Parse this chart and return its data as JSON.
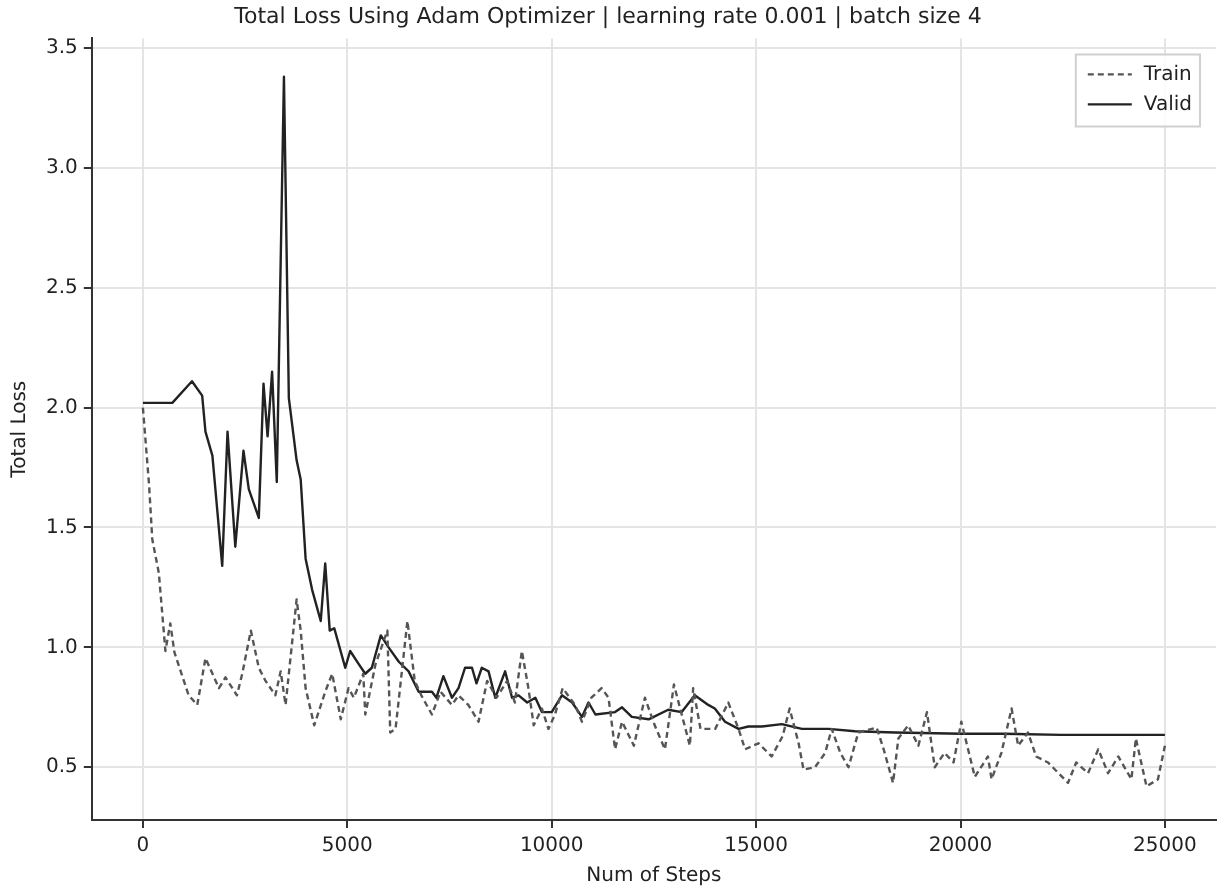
{
  "chart_data": {
    "type": "line",
    "title": "Total Loss Using Adam Optimizer | learning rate 0.001 | batch size 4",
    "xlabel": "Num of Steps",
    "ylabel": "Total Loss",
    "xlim": [
      -1250,
      26250
    ],
    "xticks": [
      0,
      5000,
      10000,
      15000,
      20000,
      25000
    ],
    "ylim": [
      0.28,
      3.54
    ],
    "yticks": [
      0.5,
      {
        "value": 1,
        "label": "1.0"
      },
      1.5,
      {
        "value": 2,
        "label": "2.0"
      },
      2.5,
      {
        "value": 3,
        "label": "3.0"
      },
      3.5
    ],
    "grid": true,
    "legend": "top right",
    "marker": "none",
    "series": [
      {
        "name": "Train",
        "color": "#555555",
        "line_style": "dashed",
        "x": [
          0,
          150,
          230,
          390,
          550,
          670,
          770,
          1120,
          1330,
          1530,
          1860,
          2020,
          2300,
          2430,
          2640,
          2835,
          3000,
          3240,
          3370,
          3490,
          3760,
          3860,
          3980,
          4190,
          4460,
          4630,
          4840,
          5030,
          5160,
          5390,
          5440,
          5690,
          5980,
          6050,
          6180,
          6470,
          6650,
          6810,
          7070,
          7280,
          7560,
          7720,
          7960,
          8210,
          8420,
          8650,
          8910,
          9100,
          9270,
          9430,
          9560,
          9760,
          9920,
          10080,
          10270,
          10570,
          10740,
          10970,
          11220,
          11390,
          11550,
          11720,
          12010,
          12280,
          12520,
          12770,
          12990,
          13180,
          13380,
          13460,
          13640,
          14000,
          14320,
          14570,
          14730,
          15060,
          15380,
          15650,
          15820,
          16040,
          16160,
          16440,
          16690,
          16850,
          17060,
          17260,
          17500,
          17950,
          18120,
          18350,
          18480,
          18720,
          18970,
          19180,
          19370,
          19610,
          19830,
          20020,
          20350,
          20670,
          20760,
          21000,
          21250,
          21410,
          21650,
          21850,
          22140,
          22630,
          22830,
          23120,
          23370,
          23610,
          23860,
          24180,
          24290,
          24550,
          24830,
          25000
        ],
        "values": [
          2.0,
          1.68,
          1.45,
          1.31,
          0.985,
          1.1,
          0.98,
          0.8,
          0.76,
          0.955,
          0.83,
          0.875,
          0.8,
          0.89,
          1.07,
          0.915,
          0.86,
          0.8,
          0.9,
          0.76,
          1.2,
          1.07,
          0.83,
          0.675,
          0.815,
          0.89,
          0.7,
          0.83,
          0.79,
          0.89,
          0.72,
          0.93,
          1.07,
          0.645,
          0.66,
          1.11,
          0.86,
          0.8,
          0.72,
          0.815,
          0.76,
          0.8,
          0.76,
          0.69,
          0.86,
          0.79,
          0.86,
          0.77,
          0.985,
          0.83,
          0.675,
          0.745,
          0.66,
          0.72,
          0.83,
          0.76,
          0.69,
          0.79,
          0.83,
          0.79,
          0.575,
          0.69,
          0.59,
          0.79,
          0.675,
          0.575,
          0.845,
          0.72,
          0.59,
          0.83,
          0.66,
          0.66,
          0.77,
          0.66,
          0.575,
          0.6,
          0.545,
          0.63,
          0.745,
          0.6,
          0.49,
          0.5,
          0.56,
          0.66,
          0.56,
          0.5,
          0.645,
          0.665,
          0.575,
          0.435,
          0.62,
          0.675,
          0.59,
          0.73,
          0.5,
          0.56,
          0.52,
          0.69,
          0.46,
          0.545,
          0.45,
          0.56,
          0.745,
          0.59,
          0.645,
          0.545,
          0.52,
          0.435,
          0.52,
          0.475,
          0.575,
          0.475,
          0.545,
          0.45,
          0.62,
          0.42,
          0.45,
          0.59
        ]
      },
      {
        "name": "Valid",
        "color": "#222222",
        "line_style": "solid",
        "x": [
          0,
          720,
          1200,
          1450,
          1530,
          1700,
          1940,
          2070,
          2260,
          2460,
          2590,
          2835,
          2950,
          3050,
          3160,
          3275,
          3450,
          3570,
          3760,
          3860,
          3980,
          4140,
          4350,
          4460,
          4570,
          4680,
          4950,
          5070,
          5280,
          5440,
          5600,
          5820,
          6010,
          6260,
          6500,
          6745,
          7070,
          7180,
          7350,
          7560,
          7720,
          7880,
          8050,
          8160,
          8290,
          8455,
          8620,
          8860,
          9030,
          9190,
          9400,
          9600,
          9760,
          10000,
          10250,
          10500,
          10740,
          10900,
          11070,
          11550,
          11720,
          11960,
          12370,
          12850,
          13180,
          13500,
          13830,
          13990,
          14240,
          14570,
          14810,
          15140,
          15630,
          16120,
          16770,
          17420,
          18400,
          20020,
          21000,
          22460,
          25000
        ],
        "values": [
          2.02,
          2.02,
          2.11,
          2.05,
          1.9,
          1.8,
          1.34,
          1.9,
          1.42,
          1.82,
          1.66,
          1.54,
          2.1,
          1.88,
          2.15,
          1.69,
          3.38,
          2.04,
          1.78,
          1.7,
          1.37,
          1.24,
          1.11,
          1.35,
          1.07,
          1.08,
          0.915,
          0.985,
          0.93,
          0.89,
          0.915,
          1.05,
          1.0,
          0.94,
          0.9,
          0.815,
          0.815,
          0.79,
          0.88,
          0.79,
          0.83,
          0.915,
          0.915,
          0.85,
          0.915,
          0.9,
          0.79,
          0.9,
          0.79,
          0.8,
          0.77,
          0.79,
          0.73,
          0.73,
          0.8,
          0.77,
          0.71,
          0.77,
          0.72,
          0.73,
          0.75,
          0.71,
          0.7,
          0.74,
          0.73,
          0.8,
          0.76,
          0.745,
          0.69,
          0.66,
          0.67,
          0.67,
          0.68,
          0.66,
          0.66,
          0.65,
          0.645,
          0.64,
          0.64,
          0.635,
          0.635
        ]
      }
    ]
  }
}
